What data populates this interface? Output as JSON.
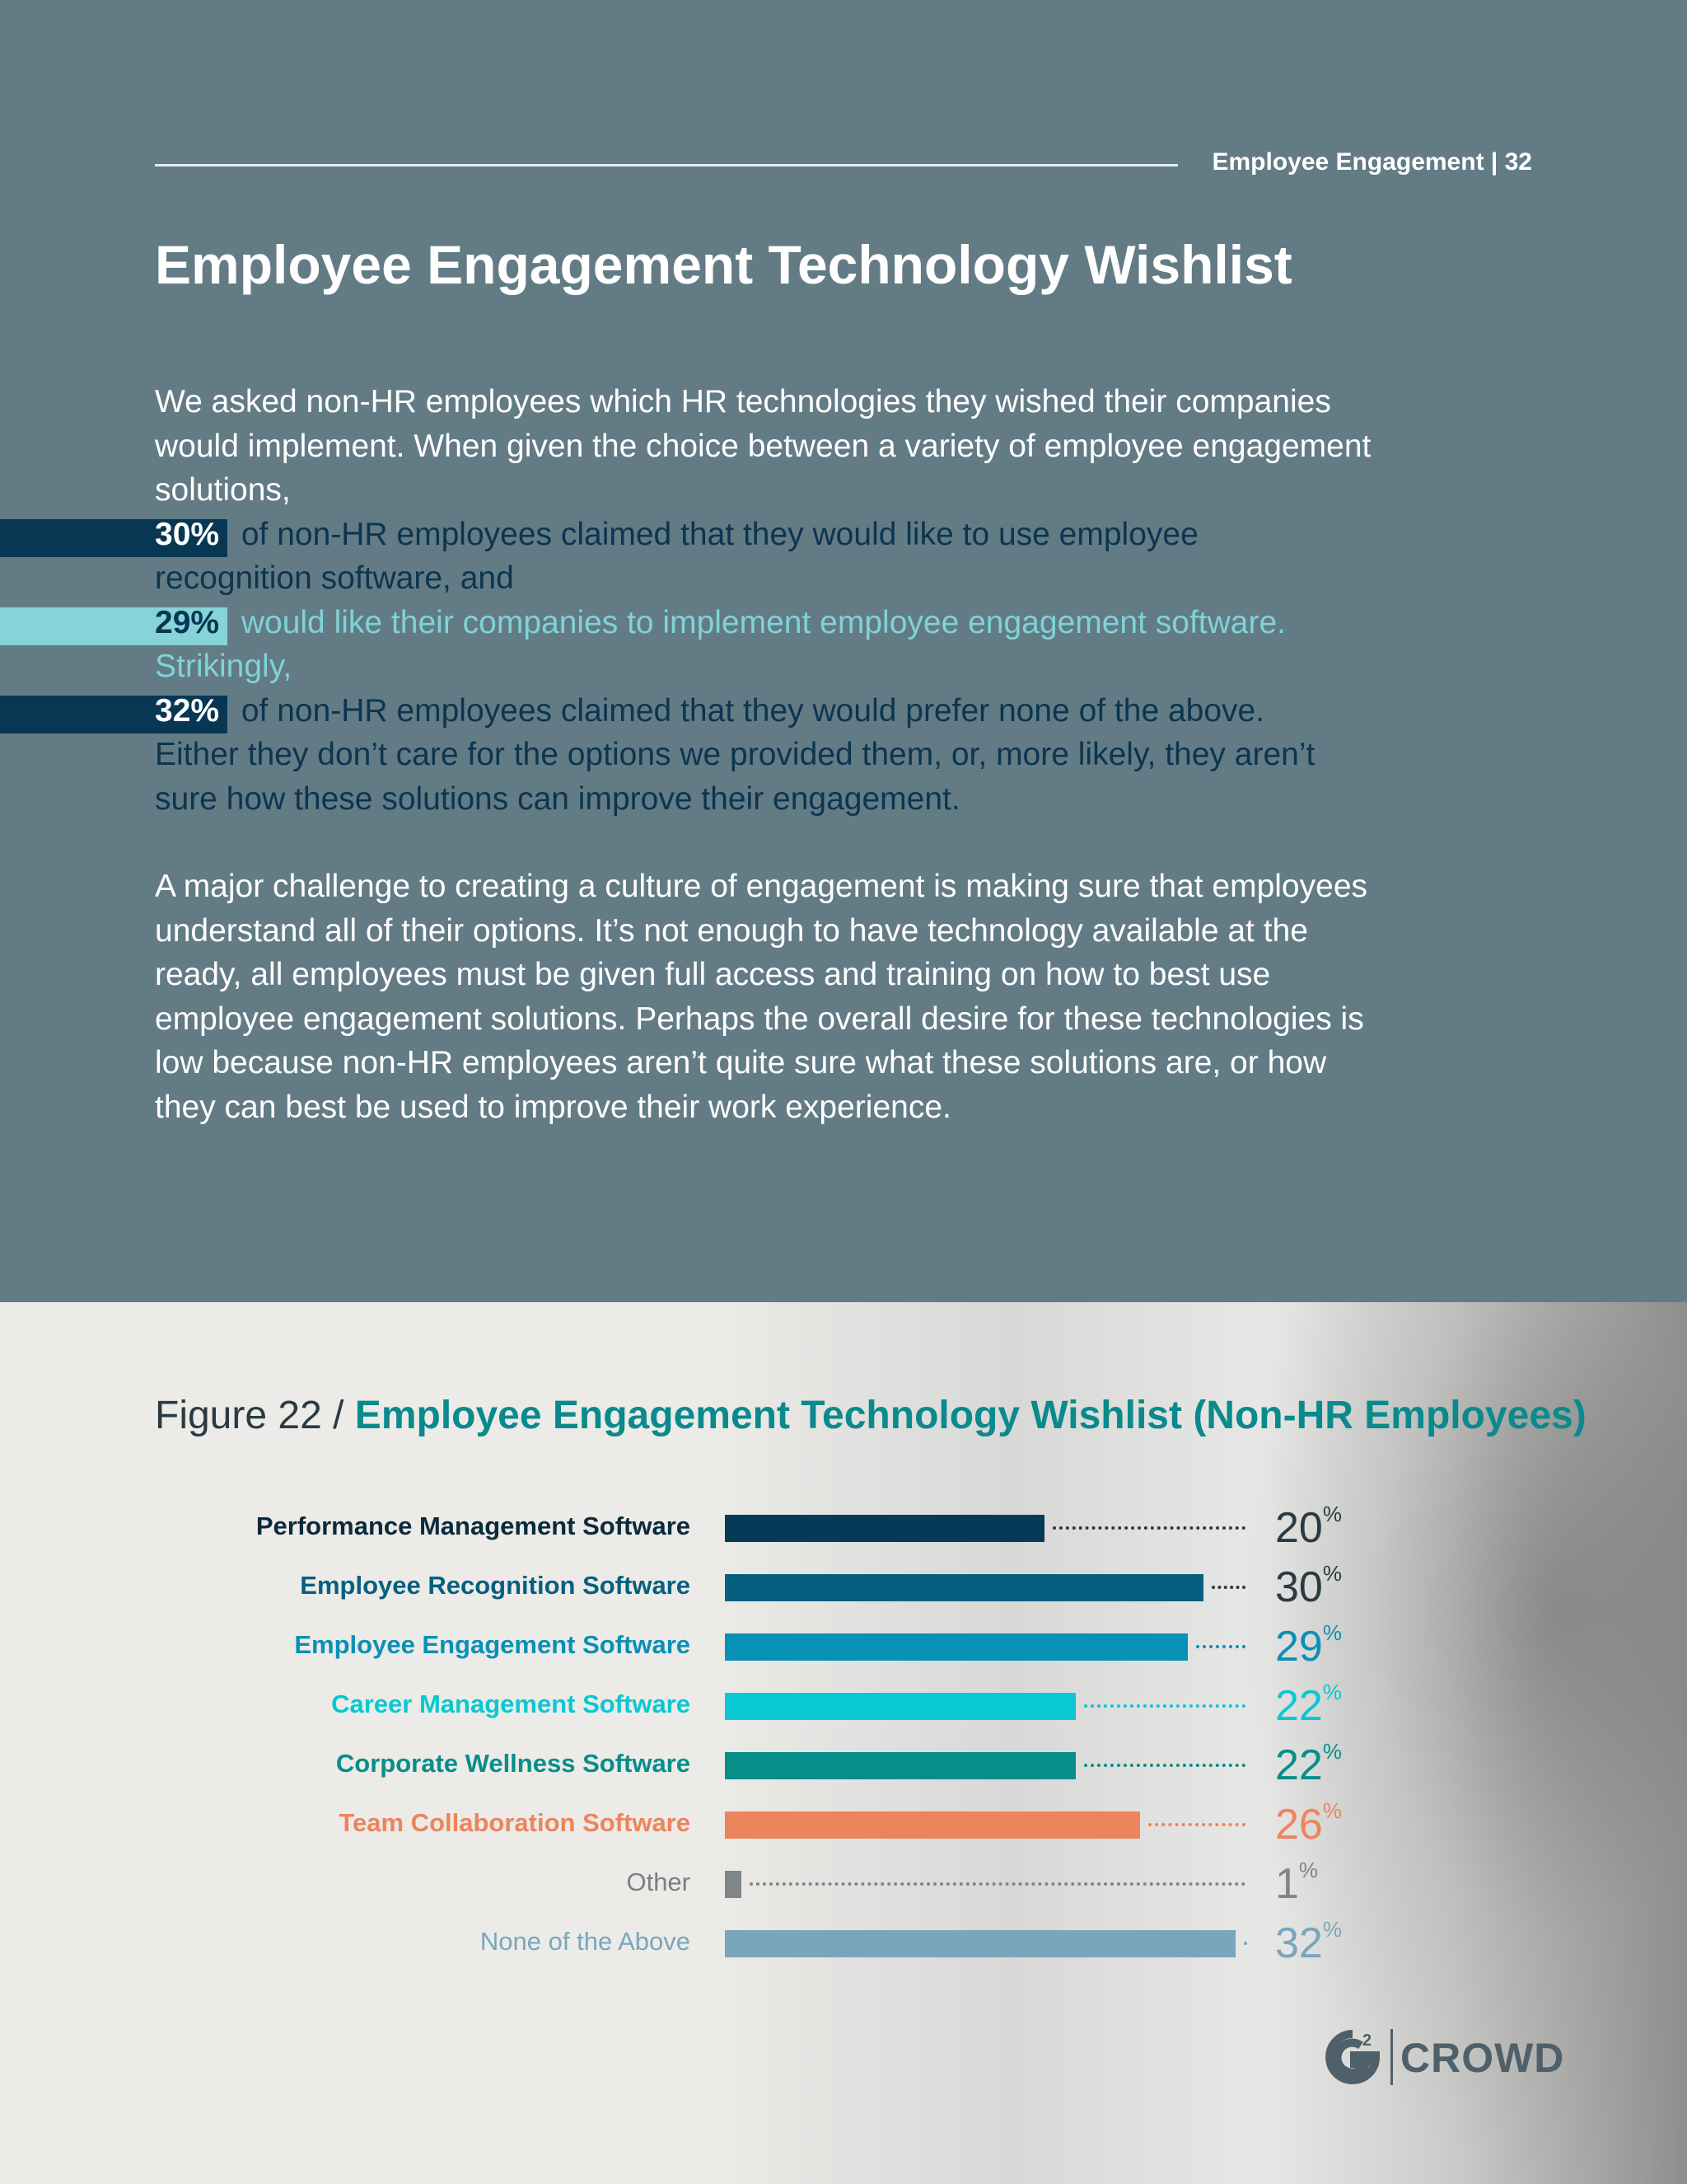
{
  "header": {
    "label": "Employee Engagement | 32"
  },
  "page": {
    "title": "Employee Engagement Technology Wishlist"
  },
  "body": {
    "intro": "We asked non-HR employees which HR technologies they wished their companies would implement. When given the choice between a variety of employee engagement solutions,",
    "stat1_pct": "30%",
    "stat1_line1": "of non-HR employees claimed that they would like to use employee",
    "stat1_line2": "recognition software, and",
    "stat2_pct": "29%",
    "stat2_line1": "would like their companies to implement employee engagement software.",
    "stat2_line2": "Strikingly,",
    "stat3_pct": "32%",
    "stat3_line1": "of non-HR employees claimed that they would prefer none of the above.",
    "stat3_line2": "Either they don’t care for the options we provided them, or, more likely, they aren’t",
    "stat3_line3": "sure how these solutions can improve their engagement.",
    "paragraph2": "A major challenge to creating a culture of engagement is making sure that employees understand all of their options. It’s not enough to have technology available at the ready, all employees must be given full access and training on how to best use employee engagement solutions. Perhaps the overall desire for these technologies is low because non-HR employees aren’t quite sure what these solutions are, or how they can best be used to improve their work experience."
  },
  "figure": {
    "prefix": "Figure 22 / ",
    "title": "Employee Engagement Technology Wishlist (Non-HR Employees)",
    "percent_symbol": "%"
  },
  "chart_data": {
    "type": "bar",
    "orientation": "horizontal",
    "title": "Employee Engagement Technology Wishlist (Non-HR Employees)",
    "categories": [
      "Performance Management Software",
      "Employee Recognition Software",
      "Employee Engagement Software",
      "Career Management Software",
      "Corporate Wellness Software",
      "Team Collaboration Software",
      "Other",
      "None of the Above"
    ],
    "values": [
      20,
      30,
      29,
      22,
      22,
      26,
      1,
      32
    ],
    "value_labels": [
      "20",
      "30",
      "29",
      "22",
      "22",
      "26",
      "1",
      "32"
    ],
    "unit": "%",
    "colors": [
      "#063a57",
      "#065f80",
      "#0990b6",
      "#08c8d2",
      "#068e89",
      "#ec845d",
      "#808587",
      "#79a6bc"
    ],
    "xlim": [
      0,
      32
    ],
    "grid": false
  },
  "logo": {
    "text": "CROWD"
  },
  "colors": {
    "top_background": "#637b85",
    "bottom_background": "#ecebe7",
    "accent_teal": "#0a8a8c",
    "stat_dark": "#083753",
    "stat_light": "#87d4d8"
  }
}
